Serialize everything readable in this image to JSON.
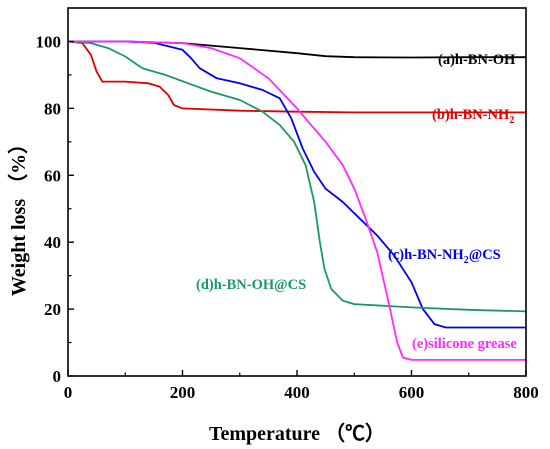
{
  "chart_data": {
    "type": "line",
    "title": "",
    "xlabel": "Temperature （℃）",
    "ylabel": "Weight loss （%）",
    "xlim": [
      0,
      800
    ],
    "ylim": [
      0,
      110
    ],
    "xticks": [
      0,
      200,
      400,
      600,
      800
    ],
    "yticks": [
      0,
      20,
      40,
      60,
      80,
      100
    ],
    "grid": false,
    "legend": "none (inline labels)",
    "series": [
      {
        "name": "(a)h-BN-OH",
        "label_parts": [
          "(a)h-BN-OH"
        ],
        "color": "#000000",
        "points": [
          [
            0,
            100
          ],
          [
            100,
            100
          ],
          [
            200,
            99.5
          ],
          [
            300,
            98
          ],
          [
            400,
            96.5
          ],
          [
            450,
            95.6
          ],
          [
            500,
            95.3
          ],
          [
            600,
            95.2
          ],
          [
            700,
            95.3
          ],
          [
            800,
            95.3
          ]
        ]
      },
      {
        "name": "(b)h-BN-NH2",
        "label_parts": [
          "(b)h-BN-NH",
          "2",
          ""
        ],
        "color": "#e00000",
        "points": [
          [
            0,
            100
          ],
          [
            25,
            99.5
          ],
          [
            40,
            96
          ],
          [
            50,
            91
          ],
          [
            60,
            88
          ],
          [
            100,
            88
          ],
          [
            140,
            87.5
          ],
          [
            160,
            86.5
          ],
          [
            175,
            84
          ],
          [
            185,
            81
          ],
          [
            200,
            80
          ],
          [
            300,
            79.3
          ],
          [
            400,
            79
          ],
          [
            500,
            78.8
          ],
          [
            600,
            78.8
          ],
          [
            700,
            78.8
          ],
          [
            800,
            78.8
          ]
        ]
      },
      {
        "name": "(c)h-BN-NH2@CS",
        "label_parts": [
          "(c)h-BN-NH",
          "2",
          "@CS"
        ],
        "color": "#0000ee",
        "points": [
          [
            0,
            100
          ],
          [
            100,
            100
          ],
          [
            150,
            99.6
          ],
          [
            200,
            97.5
          ],
          [
            215,
            95
          ],
          [
            230,
            92
          ],
          [
            260,
            89
          ],
          [
            300,
            87.5
          ],
          [
            340,
            85.5
          ],
          [
            370,
            83
          ],
          [
            390,
            77
          ],
          [
            410,
            68
          ],
          [
            430,
            61
          ],
          [
            450,
            56
          ],
          [
            480,
            52
          ],
          [
            510,
            47
          ],
          [
            540,
            42
          ],
          [
            570,
            36
          ],
          [
            600,
            28
          ],
          [
            620,
            20
          ],
          [
            640,
            15.5
          ],
          [
            660,
            14.5
          ],
          [
            700,
            14.5
          ],
          [
            800,
            14.5
          ]
        ]
      },
      {
        "name": "(d)h-BN-OH@CS",
        "label_parts": [
          "(d)h-BN-OH@CS"
        ],
        "color": "#1a9966",
        "points": [
          [
            0,
            100
          ],
          [
            40,
            99.5
          ],
          [
            70,
            98
          ],
          [
            100,
            95.5
          ],
          [
            130,
            92
          ],
          [
            170,
            90
          ],
          [
            210,
            87.5
          ],
          [
            250,
            85
          ],
          [
            300,
            82.5
          ],
          [
            340,
            79
          ],
          [
            370,
            75
          ],
          [
            395,
            70
          ],
          [
            415,
            63
          ],
          [
            430,
            52
          ],
          [
            440,
            40
          ],
          [
            448,
            32
          ],
          [
            460,
            26
          ],
          [
            480,
            22.5
          ],
          [
            500,
            21.5
          ],
          [
            600,
            20.5
          ],
          [
            700,
            19.8
          ],
          [
            800,
            19.3
          ]
        ]
      },
      {
        "name": "(e)silicone grease",
        "label_parts": [
          "(e)silicone grease"
        ],
        "color": "#ff2bff",
        "points": [
          [
            0,
            100
          ],
          [
            100,
            100
          ],
          [
            200,
            99.5
          ],
          [
            250,
            98
          ],
          [
            300,
            95
          ],
          [
            350,
            89
          ],
          [
            400,
            80
          ],
          [
            450,
            70
          ],
          [
            480,
            63
          ],
          [
            500,
            56
          ],
          [
            520,
            47
          ],
          [
            540,
            37
          ],
          [
            560,
            22
          ],
          [
            575,
            10
          ],
          [
            585,
            5.5
          ],
          [
            600,
            4.8
          ],
          [
            700,
            4.8
          ],
          [
            800,
            4.8
          ]
        ]
      }
    ]
  }
}
